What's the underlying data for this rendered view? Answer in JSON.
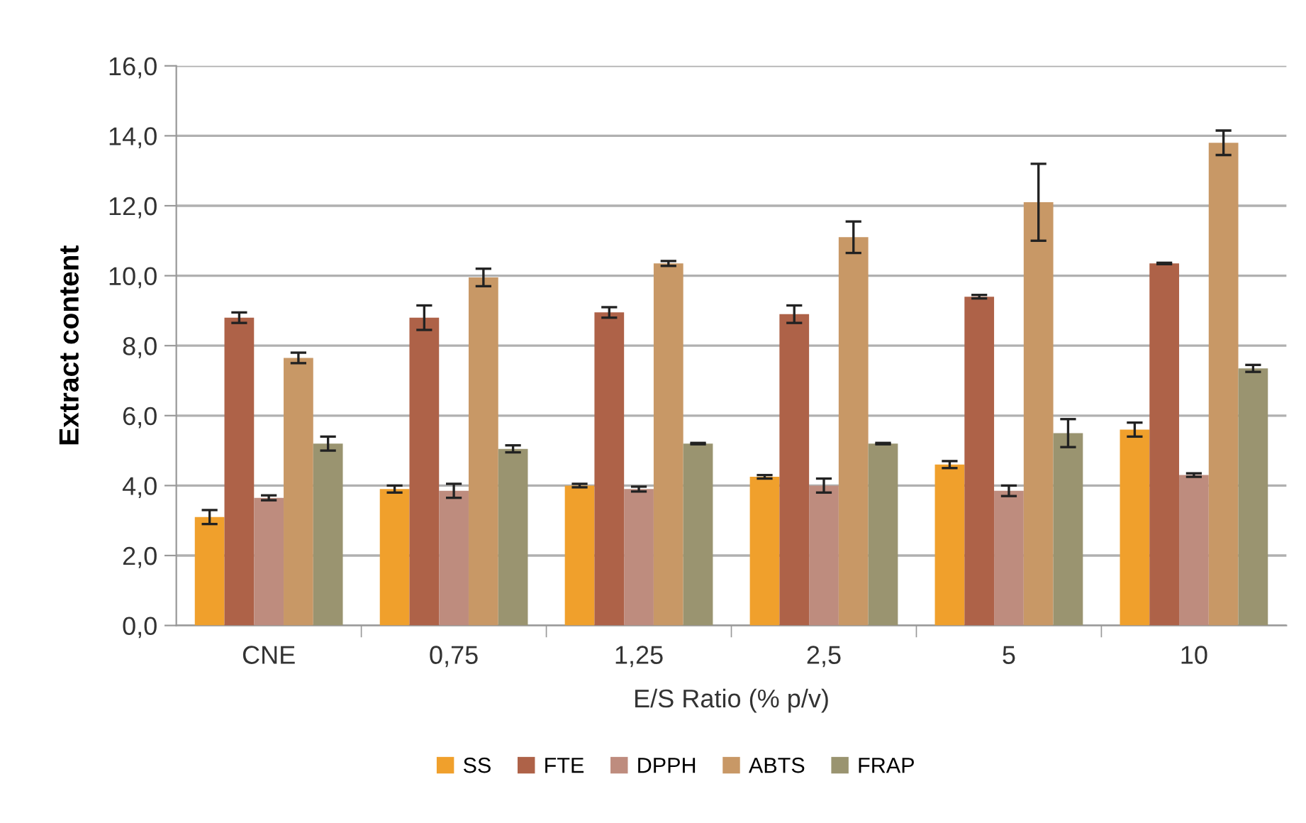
{
  "chart_data": {
    "type": "bar",
    "xlabel": "E/S Ratio (% p/v)",
    "ylabel": "Extract content",
    "categories": [
      "CNE",
      "0,75",
      "1,25",
      "2,5",
      "5",
      "10"
    ],
    "series": [
      {
        "name": "SS",
        "color": "#f0a02c",
        "values": [
          3.1,
          3.9,
          4.0,
          4.25,
          4.6,
          5.6
        ],
        "errors": [
          0.2,
          0.1,
          0.05,
          0.05,
          0.1,
          0.2
        ]
      },
      {
        "name": "FTE",
        "color": "#ae6248",
        "values": [
          8.8,
          8.8,
          8.95,
          8.9,
          9.4,
          10.35
        ],
        "errors": [
          0.15,
          0.35,
          0.15,
          0.25,
          0.05,
          0.02
        ]
      },
      {
        "name": "DPPH",
        "color": "#be8c7e",
        "values": [
          3.65,
          3.85,
          3.9,
          4.0,
          3.85,
          4.3
        ],
        "errors": [
          0.07,
          0.2,
          0.07,
          0.2,
          0.15,
          0.05
        ]
      },
      {
        "name": "ABTS",
        "color": "#c89866",
        "values": [
          7.65,
          9.95,
          10.35,
          11.1,
          12.1,
          13.8
        ],
        "errors": [
          0.15,
          0.25,
          0.07,
          0.45,
          1.1,
          0.35
        ]
      },
      {
        "name": "FRAP",
        "color": "#9a9470",
        "values": [
          5.2,
          5.05,
          5.2,
          5.2,
          5.5,
          7.35
        ],
        "errors": [
          0.2,
          0.1,
          0.02,
          0.02,
          0.4,
          0.1
        ]
      }
    ],
    "ylim": [
      0,
      16
    ],
    "yticks": [
      {
        "value": 0,
        "label": "0,0"
      },
      {
        "value": 2,
        "label": "2,0"
      },
      {
        "value": 4,
        "label": "4,0"
      },
      {
        "value": 6,
        "label": "6,0"
      },
      {
        "value": 8,
        "label": "8,0"
      },
      {
        "value": 10,
        "label": "10,0"
      },
      {
        "value": 12,
        "label": "12,0"
      },
      {
        "value": 14,
        "label": "14,0"
      },
      {
        "value": 16,
        "label": "16,0"
      }
    ],
    "grid": "y",
    "legend": "bottom"
  }
}
